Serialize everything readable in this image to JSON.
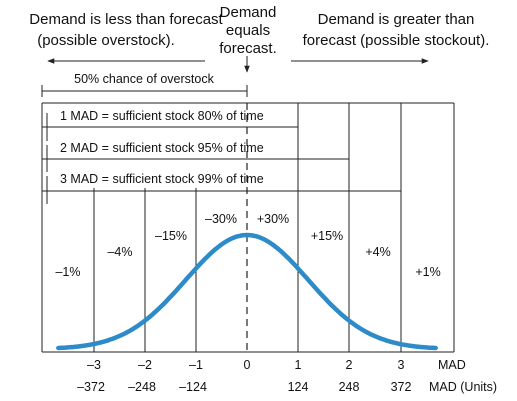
{
  "header": {
    "left_line1": "Demand is less than forecast",
    "left_line2": "(possible overstock).",
    "center_line1": "Demand",
    "center_line2": "equals",
    "center_line3": "forecast.",
    "right_line1": "Demand is greater than",
    "right_line2": "forecast (possible stockout)."
  },
  "overstock_label": "50% chance of overstock",
  "mad_bars": [
    {
      "label": "1 MAD = sufficient stock 80% of time"
    },
    {
      "label": "2 MAD = sufficient stock 95% of time"
    },
    {
      "label": "3 MAD = sufficient stock 99% of time"
    }
  ],
  "band_percents": [
    "–1%",
    "–4%",
    "–15%",
    "–30%",
    "+30%",
    "+15%",
    "+4%",
    "+1%"
  ],
  "axis": {
    "mad_ticks": [
      "–3",
      "–2",
      "–1",
      "0",
      "1",
      "2",
      "3"
    ],
    "unit_ticks": [
      "–372",
      "–248",
      "–124",
      "124",
      "248",
      "372"
    ],
    "mad_label": "MAD",
    "units_label": "MAD (Units)"
  },
  "colors": {
    "curve": "#2e8bc9",
    "lines": "#222222"
  }
}
